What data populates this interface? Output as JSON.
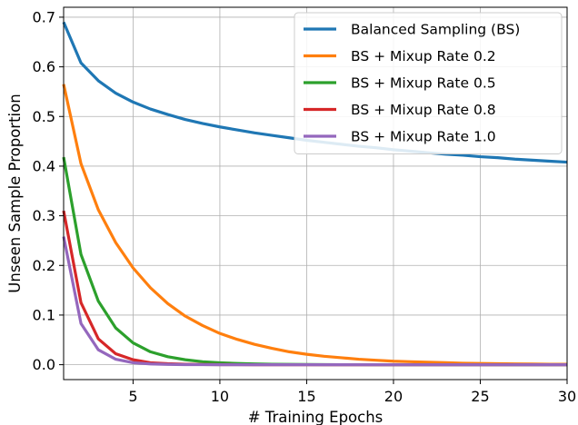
{
  "chart_data": {
    "type": "line",
    "title": "",
    "xlabel": "# Training Epochs",
    "ylabel": "Unseen Sample Proportion",
    "xlim": [
      1,
      30
    ],
    "ylim": [
      -0.03,
      0.72
    ],
    "x_ticks": [
      5,
      10,
      15,
      20,
      25,
      30
    ],
    "y_ticks": [
      0.0,
      0.1,
      0.2,
      0.3,
      0.4,
      0.5,
      0.6,
      0.7
    ],
    "x_tick_labels": [
      "5",
      "10",
      "15",
      "20",
      "25",
      "30"
    ],
    "y_tick_labels": [
      "0.0",
      "0.1",
      "0.2",
      "0.3",
      "0.4",
      "0.5",
      "0.6",
      "0.7"
    ],
    "grid": true,
    "legend_position": "top-right",
    "x": [
      1,
      2,
      3,
      4,
      5,
      6,
      7,
      8,
      9,
      10,
      11,
      12,
      13,
      14,
      15,
      16,
      17,
      18,
      19,
      20,
      21,
      22,
      23,
      24,
      25,
      26,
      27,
      28,
      29,
      30
    ],
    "series": [
      {
        "name": "Balanced Sampling (BS)",
        "color": "#1f77b4",
        "values": [
          0.69,
          0.608,
          0.572,
          0.547,
          0.529,
          0.515,
          0.504,
          0.494,
          0.486,
          0.479,
          0.473,
          0.467,
          0.462,
          0.457,
          0.452,
          0.448,
          0.444,
          0.44,
          0.437,
          0.433,
          0.43,
          0.427,
          0.424,
          0.422,
          0.419,
          0.417,
          0.414,
          0.412,
          0.41,
          0.408
        ]
      },
      {
        "name": "BS + Mixup Rate 0.2",
        "color": "#ff7f0e",
        "values": [
          0.565,
          0.405,
          0.312,
          0.246,
          0.195,
          0.155,
          0.123,
          0.098,
          0.079,
          0.063,
          0.051,
          0.041,
          0.033,
          0.026,
          0.021,
          0.017,
          0.014,
          0.011,
          0.009,
          0.007,
          0.006,
          0.005,
          0.004,
          0.003,
          0.0025,
          0.002,
          0.0016,
          0.0013,
          0.001,
          0.0008
        ]
      },
      {
        "name": "BS + Mixup Rate 0.5",
        "color": "#2ca02c",
        "values": [
          0.418,
          0.222,
          0.128,
          0.074,
          0.044,
          0.026,
          0.016,
          0.01,
          0.006,
          0.004,
          0.0025,
          0.0016,
          0.001,
          0.0006,
          0.0004,
          0.0002,
          0.0001,
          0.0001,
          0,
          0,
          0,
          0,
          0,
          0,
          0,
          0,
          0,
          0,
          0,
          0
        ]
      },
      {
        "name": "BS + Mixup Rate 0.8",
        "color": "#d62728",
        "values": [
          0.31,
          0.125,
          0.052,
          0.022,
          0.01,
          0.004,
          0.002,
          0.001,
          0.0004,
          0.0002,
          0.0001,
          0,
          0,
          0,
          0,
          0,
          0,
          0,
          0,
          0,
          0,
          0,
          0,
          0,
          0,
          0,
          0,
          0,
          0,
          0
        ]
      },
      {
        "name": "BS + Mixup Rate 1.0",
        "color": "#9467bd",
        "values": [
          0.258,
          0.083,
          0.03,
          0.011,
          0.004,
          0.0015,
          0.0006,
          0.0002,
          0.0001,
          0,
          0,
          0,
          0,
          0,
          0,
          0,
          0,
          0,
          0,
          0,
          0,
          0,
          0,
          0,
          0,
          0,
          0,
          0,
          0,
          0
        ]
      }
    ]
  }
}
